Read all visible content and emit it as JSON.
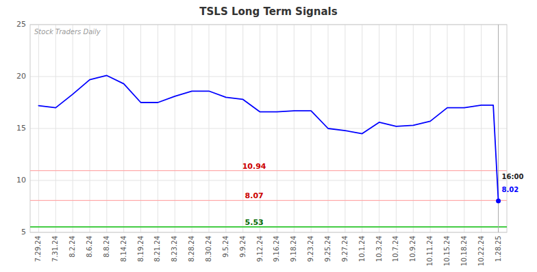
{
  "chart_data": {
    "type": "line",
    "title": "TSLS Long Term Signals",
    "x": [
      0,
      1,
      2,
      3,
      4,
      5,
      6,
      7,
      8,
      9,
      10,
      11,
      12,
      13,
      14,
      15,
      16,
      17,
      18,
      19,
      20,
      21,
      22,
      23,
      24,
      25,
      26,
      26.7,
      27
    ],
    "values": [
      17.2,
      17.0,
      18.3,
      19.7,
      20.1,
      19.3,
      17.5,
      17.5,
      18.1,
      18.6,
      18.6,
      18.0,
      17.8,
      16.6,
      16.6,
      16.7,
      16.7,
      15.0,
      14.8,
      14.5,
      15.6,
      15.2,
      15.3,
      15.7,
      17.0,
      17.0,
      17.25,
      17.25,
      8.02
    ],
    "color": "#0000ff",
    "xlim": [
      -0.5,
      27.5
    ],
    "xticks": [
      {
        "value": 0,
        "label": "7.29.24"
      },
      {
        "value": 1,
        "label": "7.31.24"
      },
      {
        "value": 2,
        "label": "8.2.24"
      },
      {
        "value": 3,
        "label": "8.6.24"
      },
      {
        "value": 4,
        "label": "8.8.24"
      },
      {
        "value": 5,
        "label": "8.14.24"
      },
      {
        "value": 6,
        "label": "8.19.24"
      },
      {
        "value": 7,
        "label": "8.21.24"
      },
      {
        "value": 8,
        "label": "8.23.24"
      },
      {
        "value": 9,
        "label": "8.28.24"
      },
      {
        "value": 10,
        "label": "8.30.24"
      },
      {
        "value": 11,
        "label": "9.5.24"
      },
      {
        "value": 12,
        "label": "9.9.24"
      },
      {
        "value": 13,
        "label": "9.12.24"
      },
      {
        "value": 14,
        "label": "9.16.24"
      },
      {
        "value": 15,
        "label": "9.18.24"
      },
      {
        "value": 16,
        "label": "9.23.24"
      },
      {
        "value": 17,
        "label": "9.25.24"
      },
      {
        "value": 18,
        "label": "9.27.24"
      },
      {
        "value": 19,
        "label": "10.1.24"
      },
      {
        "value": 20,
        "label": "10.3.24"
      },
      {
        "value": 21,
        "label": "10.7.24"
      },
      {
        "value": 22,
        "label": "10.9.24"
      },
      {
        "value": 23,
        "label": "10.11.24"
      },
      {
        "value": 24,
        "label": "10.15.24"
      },
      {
        "value": 25,
        "label": "10.18.24"
      },
      {
        "value": 26,
        "label": "10.22.24"
      },
      {
        "value": 27,
        "label": "1.28.25"
      }
    ],
    "ylim": [
      5,
      25
    ],
    "yticks": [
      5,
      10,
      15,
      20,
      25
    ],
    "grid": true,
    "last_point": {
      "x": 27,
      "y": 8.02
    },
    "hlines": [
      {
        "y": 10.94,
        "label": "10.94",
        "color": "#ffaaaa",
        "label_color": "#cc0000"
      },
      {
        "y": 8.07,
        "label": "8.07",
        "color": "#ffaaaa",
        "label_color": "#cc0000"
      },
      {
        "y": 5.53,
        "label": "5.53",
        "color": "#44cc44",
        "label_color": "#006600"
      }
    ],
    "vlines": [
      {
        "x": 27,
        "color": "#aaaaaa"
      }
    ],
    "annotations": [
      {
        "text": "16:00",
        "x": 27,
        "y": 10.3,
        "color": "#222222"
      },
      {
        "text": "8.02",
        "x": 27,
        "y": 9.1,
        "color": "#0000ff"
      }
    ],
    "watermark": "Stock Traders Daily"
  }
}
